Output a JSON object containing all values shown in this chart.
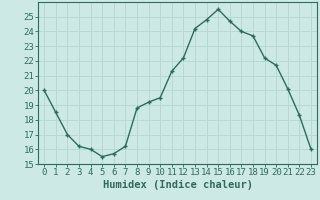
{
  "xlabel": "Humidex (Indice chaleur)",
  "x": [
    0,
    1,
    2,
    3,
    4,
    5,
    6,
    7,
    8,
    9,
    10,
    11,
    12,
    13,
    14,
    15,
    16,
    17,
    18,
    19,
    20,
    21,
    22,
    23
  ],
  "y": [
    20.0,
    18.5,
    17.0,
    16.2,
    16.0,
    15.5,
    15.7,
    16.2,
    18.8,
    19.2,
    19.5,
    21.3,
    22.2,
    24.2,
    24.8,
    25.5,
    24.7,
    24.0,
    23.7,
    22.2,
    21.7,
    20.1,
    18.3,
    16.0
  ],
  "ylim": [
    15,
    26
  ],
  "yticks": [
    15,
    16,
    17,
    18,
    19,
    20,
    21,
    22,
    23,
    24,
    25
  ],
  "xticks": [
    0,
    1,
    2,
    3,
    4,
    5,
    6,
    7,
    8,
    9,
    10,
    11,
    12,
    13,
    14,
    15,
    16,
    17,
    18,
    19,
    20,
    21,
    22,
    23
  ],
  "line_color": "#2e6b5e",
  "marker": "+",
  "marker_size": 3.5,
  "marker_linewidth": 1.0,
  "line_width": 1.0,
  "bg_color": "#cce9e5",
  "grid_color": "#b8d8d4",
  "tick_label_color": "#2e6b5e",
  "xlabel_color": "#2e6b5e",
  "font_size_ticks": 6.5,
  "font_size_xlabel": 7.5
}
